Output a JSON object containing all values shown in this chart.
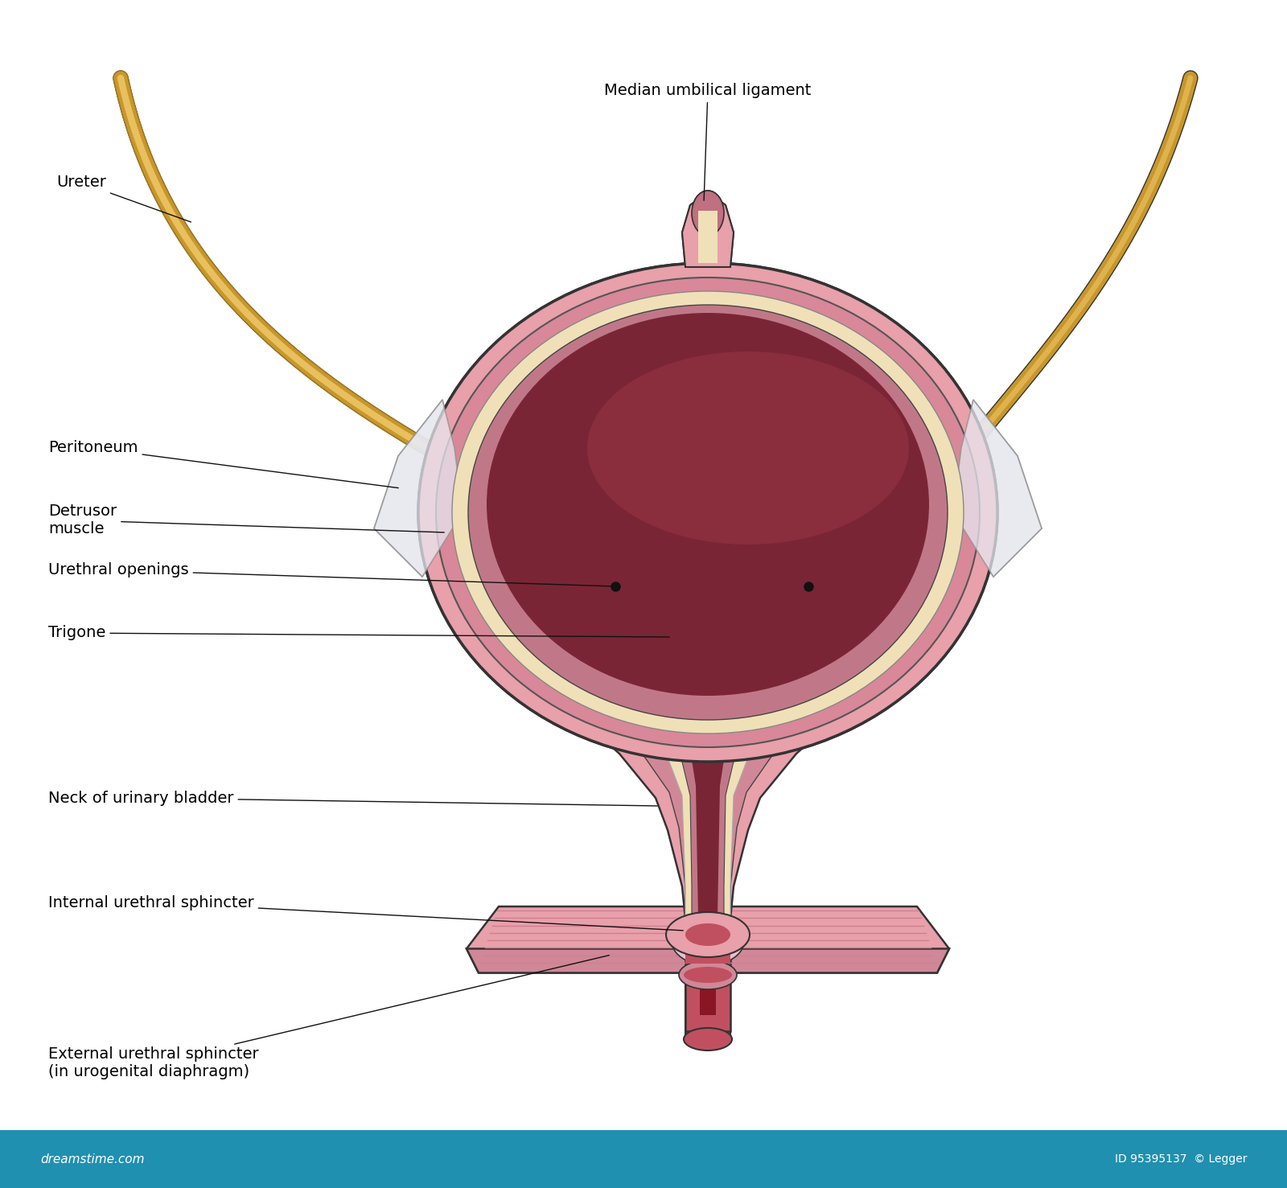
{
  "background_color": "#ffffff",
  "bladder_outer_color": "#e8a0aa",
  "bladder_mid_color": "#d07888",
  "bladder_cream": "#f0e0b8",
  "bladder_lumen_dark": "#7a2535",
  "bladder_lumen_mid": "#9a3545",
  "bladder_lumen_light": "#b04055",
  "ureter_main": "#c8972a",
  "ureter_light": "#e8c060",
  "ureter_dark": "#a07820",
  "peritoneum_fill": "#e8e8f0",
  "peritoneum_edge": "#909090",
  "neck_outer": "#e8a0aa",
  "neck_cream": "#f0e0b8",
  "urethra_tube": "#c05060",
  "sphincter_slab": "#e8a0aa",
  "sphincter_slab_lines": "#d08090",
  "sphincter_slab_edge": "#333333",
  "bottom_bar": "#2090b0",
  "label_fs": 14,
  "line_color": "#111111",
  "labels": {
    "median_lig": "Median umbilical ligament",
    "ureter": "Ureter",
    "peritoneum": "Peritoneum",
    "detrusor": "Detrusor\nmuscle",
    "urethral_openings": "Urethral openings",
    "trigone": "Trigone",
    "neck": "Neck of urinary bladder",
    "internal_sphincter": "Internal urethral sphincter",
    "external_sphincter": "External urethral sphincter\n(in urogenital diaphragm)"
  }
}
